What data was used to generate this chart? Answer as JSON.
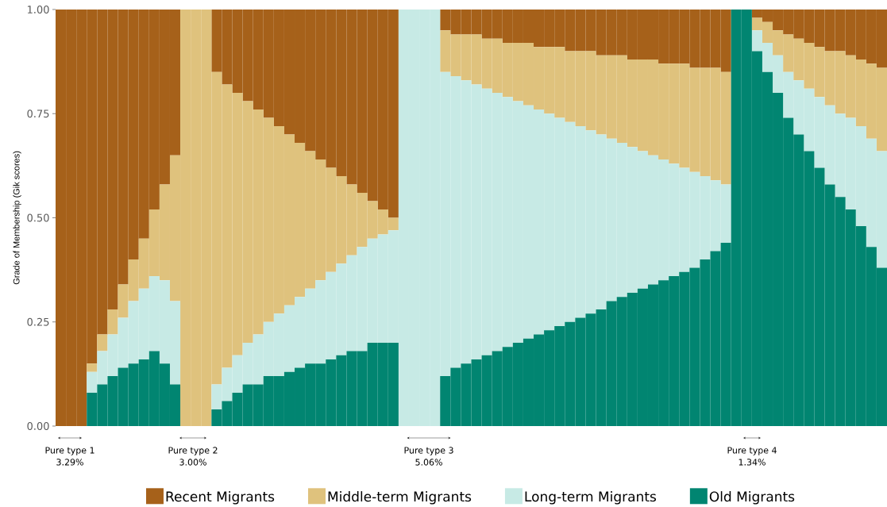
{
  "chart_data": {
    "type": "bar",
    "stacked": true,
    "ylabel": "Grade of Membership (Gik scores)",
    "categories": [
      null,
      null,
      null,
      null,
      null,
      null,
      null,
      null,
      null,
      null,
      null,
      null,
      null,
      null,
      null,
      null,
      null,
      null,
      null,
      null,
      null,
      null,
      null,
      null,
      null,
      null,
      null,
      null,
      null,
      null,
      null,
      null,
      null,
      null,
      null,
      null,
      null,
      null,
      null,
      null,
      null,
      null,
      null,
      null,
      null,
      null,
      null,
      null,
      null,
      null,
      null,
      null,
      null,
      null,
      null,
      null,
      null,
      null,
      null,
      null,
      null,
      null,
      null,
      null,
      null,
      null,
      null,
      null,
      null,
      null,
      null,
      null,
      null,
      null,
      null,
      null,
      null,
      null,
      null,
      null
    ],
    "series": [
      {
        "name": "Old Migrants",
        "color": "#018571",
        "values": [
          0,
          0,
          0,
          0.08,
          0.1,
          0.12,
          0.14,
          0.15,
          0.16,
          0.18,
          0.15,
          0.1,
          0,
          0,
          0,
          0.04,
          0.06,
          0.08,
          0.1,
          0.1,
          0.12,
          0.12,
          0.13,
          0.14,
          0.15,
          0.15,
          0.16,
          0.17,
          0.18,
          0.18,
          0.2,
          0.2,
          0.2,
          0,
          0,
          0,
          0,
          0.12,
          0.14,
          0.15,
          0.16,
          0.17,
          0.18,
          0.19,
          0.2,
          0.21,
          0.22,
          0.23,
          0.24,
          0.25,
          0.26,
          0.27,
          0.28,
          0.3,
          0.31,
          0.32,
          0.33,
          0.34,
          0.35,
          0.36,
          0.37,
          0.38,
          0.4,
          0.42,
          0.44,
          1,
          1,
          0.9,
          0.85,
          0.8,
          0.74,
          0.7,
          0.66,
          0.62,
          0.58,
          0.55,
          0.52,
          0.48,
          0.43,
          0.38
        ]
      },
      {
        "name": "Long-term Migrants",
        "color": "#c7eae5",
        "values": [
          0,
          0,
          0,
          0.05,
          0.08,
          0.1,
          0.12,
          0.15,
          0.17,
          0.18,
          0.2,
          0.2,
          0,
          0,
          0,
          0.06,
          0.08,
          0.09,
          0.1,
          0.12,
          0.13,
          0.15,
          0.16,
          0.17,
          0.18,
          0.2,
          0.21,
          0.22,
          0.23,
          0.25,
          0.25,
          0.26,
          0.27,
          1,
          1,
          1,
          1,
          0.73,
          0.7,
          0.68,
          0.66,
          0.64,
          0.62,
          0.6,
          0.58,
          0.56,
          0.54,
          0.52,
          0.5,
          0.48,
          0.46,
          0.44,
          0.42,
          0.39,
          0.37,
          0.35,
          0.33,
          0.31,
          0.29,
          0.27,
          0.25,
          0.23,
          0.2,
          0.17,
          0.14,
          0,
          0,
          0.05,
          0.07,
          0.09,
          0.11,
          0.13,
          0.15,
          0.17,
          0.19,
          0.2,
          0.22,
          0.24,
          0.26,
          0.28
        ]
      },
      {
        "name": "Middle-term Migrants",
        "color": "#dfc27d",
        "values": [
          0,
          0,
          0,
          0.02,
          0.04,
          0.06,
          0.08,
          0.1,
          0.12,
          0.16,
          0.23,
          0.35,
          1,
          1,
          1,
          0.75,
          0.68,
          0.63,
          0.58,
          0.54,
          0.49,
          0.45,
          0.41,
          0.37,
          0.33,
          0.29,
          0.25,
          0.21,
          0.17,
          0.13,
          0.09,
          0.06,
          0.03,
          0,
          0,
          0,
          0,
          0.1,
          0.1,
          0.11,
          0.12,
          0.12,
          0.13,
          0.13,
          0.14,
          0.15,
          0.15,
          0.16,
          0.17,
          0.17,
          0.18,
          0.19,
          0.19,
          0.2,
          0.21,
          0.21,
          0.22,
          0.23,
          0.23,
          0.24,
          0.25,
          0.25,
          0.26,
          0.27,
          0.27,
          0,
          0,
          0.03,
          0.05,
          0.06,
          0.09,
          0.1,
          0.11,
          0.12,
          0.13,
          0.15,
          0.15,
          0.16,
          0.18,
          0.2
        ]
      },
      {
        "name": "Recent Migrants",
        "color": "#a6611a",
        "values": [
          1,
          1,
          1,
          0.85,
          0.78,
          0.72,
          0.66,
          0.6,
          0.55,
          0.48,
          0.42,
          0.35,
          0,
          0,
          0,
          0.15,
          0.18,
          0.2,
          0.22,
          0.24,
          0.26,
          0.28,
          0.3,
          0.32,
          0.34,
          0.36,
          0.38,
          0.4,
          0.42,
          0.44,
          0.46,
          0.48,
          0.5,
          0,
          0,
          0,
          0,
          0.05,
          0.06,
          0.06,
          0.06,
          0.07,
          0.07,
          0.08,
          0.08,
          0.08,
          0.09,
          0.09,
          0.09,
          0.1,
          0.1,
          0.1,
          0.11,
          0.11,
          0.11,
          0.12,
          0.12,
          0.12,
          0.13,
          0.13,
          0.13,
          0.14,
          0.14,
          0.14,
          0.15,
          0,
          0,
          0.02,
          0.03,
          0.05,
          0.06,
          0.07,
          0.08,
          0.09,
          0.1,
          0.1,
          0.11,
          0.12,
          0.13,
          0.14
        ]
      }
    ],
    "ylim": [
      0,
      1
    ],
    "yticks": [
      {
        "value": 0,
        "label": "0.00"
      },
      {
        "value": 0.25,
        "label": "0.25"
      },
      {
        "value": 0.5,
        "label": "0.50"
      },
      {
        "value": 0.75,
        "label": "0.75"
      },
      {
        "value": 1,
        "label": "1.00"
      }
    ],
    "legend": "bottom",
    "annotations": [
      "Pure type 1",
      "3.29%",
      "Pure type 2",
      "3.00%",
      "Pure type 3",
      "5.06%",
      "Pure type 4",
      "1.34%"
    ]
  }
}
